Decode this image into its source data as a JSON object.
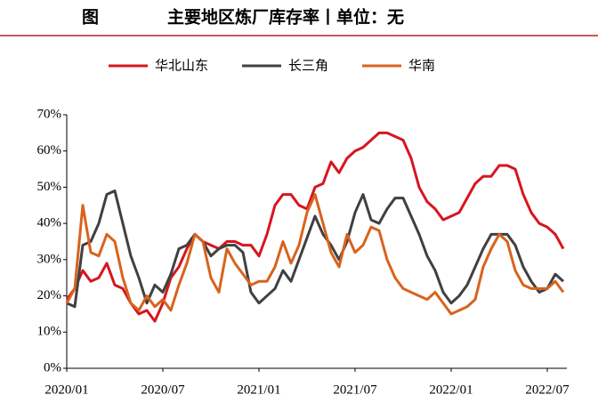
{
  "chart_data": {
    "type": "line",
    "title_prefix": "图",
    "title": "主要地区炼厂库存率丨单位：无",
    "categories": [
      "2020/01",
      null,
      null,
      null,
      null,
      null,
      null,
      null,
      null,
      null,
      null,
      null,
      "2020/07",
      null,
      null,
      null,
      null,
      null,
      null,
      null,
      null,
      null,
      null,
      null,
      "2021/01",
      null,
      null,
      null,
      null,
      null,
      null,
      null,
      null,
      null,
      null,
      null,
      "2021/07",
      null,
      null,
      null,
      null,
      null,
      null,
      null,
      null,
      null,
      null,
      null,
      "2022/01",
      null,
      null,
      null,
      null,
      null,
      null,
      null,
      null,
      null,
      null,
      null,
      "2022/07",
      null,
      null
    ],
    "series": [
      {
        "name": "华北山东",
        "color": "#d7151f",
        "values": [
          19,
          22,
          27,
          24,
          25,
          29,
          23,
          22,
          18,
          15,
          16,
          13,
          18,
          25,
          28,
          33,
          37,
          35,
          34,
          33,
          35,
          35,
          34,
          34,
          31,
          37,
          45,
          48,
          48,
          45,
          44,
          50,
          51,
          57,
          54,
          58,
          60,
          61,
          63,
          65,
          65,
          64,
          63,
          58,
          50,
          46,
          44,
          41,
          42,
          43,
          47,
          51,
          53,
          53,
          56,
          56,
          55,
          48,
          43,
          40,
          39,
          37,
          33
        ]
      },
      {
        "name": "长三角",
        "color": "#404040",
        "values": [
          18,
          17,
          34,
          35,
          40,
          48,
          49,
          40,
          31,
          25,
          18,
          23,
          21,
          26,
          33,
          34,
          37,
          35,
          31,
          33,
          34,
          34,
          32,
          21,
          18,
          20,
          22,
          27,
          24,
          30,
          36,
          42,
          37,
          34,
          30,
          35,
          43,
          48,
          41,
          40,
          44,
          47,
          47,
          42,
          37,
          31,
          27,
          21,
          18,
          20,
          23,
          28,
          33,
          37,
          37,
          37,
          34,
          28,
          24,
          21,
          22,
          26,
          24
        ]
      },
      {
        "name": "华南",
        "color": "#d8631d",
        "values": [
          18,
          22,
          45,
          32,
          31,
          37,
          35,
          25,
          18,
          16,
          20,
          17,
          19,
          16,
          23,
          29,
          37,
          35,
          25,
          21,
          33,
          29,
          26,
          23,
          24,
          24,
          28,
          35,
          29,
          34,
          43,
          48,
          40,
          32,
          28,
          37,
          32,
          34,
          39,
          38,
          30,
          25,
          22,
          21,
          20,
          19,
          21,
          18,
          15,
          16,
          17,
          19,
          28,
          33,
          37,
          35,
          27,
          23,
          22,
          22,
          22,
          24,
          21
        ]
      }
    ],
    "ylim": [
      0,
      70
    ],
    "yticks": [
      {
        "value": 0,
        "label": "0%"
      },
      {
        "value": 10,
        "label": "10%"
      },
      {
        "value": 20,
        "label": "20%"
      },
      {
        "value": 30,
        "label": "30%"
      },
      {
        "value": 40,
        "label": "40%"
      },
      {
        "value": 50,
        "label": "50%"
      },
      {
        "value": 60,
        "label": "60%"
      },
      {
        "value": 70,
        "label": "70%"
      }
    ],
    "grid": false
  }
}
